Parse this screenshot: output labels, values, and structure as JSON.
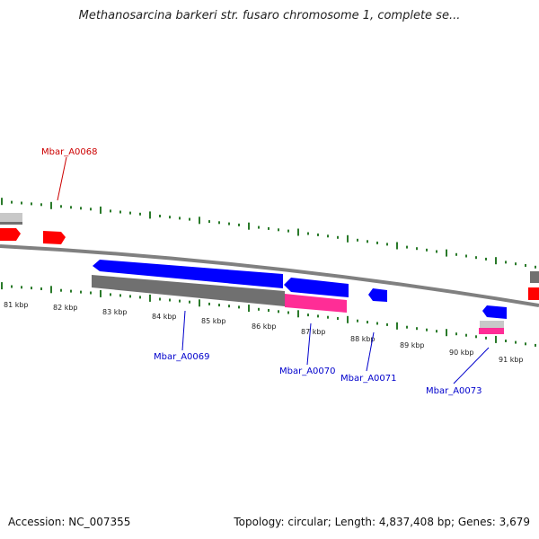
{
  "title": "Methanosarcina barkeri str. fusaro chromosome 1, complete se...",
  "ruler": {
    "unit_labels": [
      "81 kbp",
      "82 kbp",
      "83 kbp",
      "84 kbp",
      "85 kbp",
      "86 kbp",
      "87 kbp",
      "88 kbp",
      "89 kbp",
      "90 kbp",
      "91 kbp"
    ],
    "tick_color": "#2a7a2a",
    "dot_color": "#2a7a2a"
  },
  "backbone_color": "#808080",
  "genes": {
    "mbar_a0068": {
      "label": "Mbar_A0068",
      "color": "#cc0000"
    },
    "mbar_a0069": {
      "label": "Mbar_A0069",
      "color": "#0000cc"
    },
    "mbar_a0070": {
      "label": "Mbar_A0070",
      "color": "#0000cc"
    },
    "mbar_a0071": {
      "label": "Mbar_A0071",
      "color": "#0000cc"
    },
    "mbar_a0073": {
      "label": "Mbar_A0073",
      "color": "#0000cc"
    }
  },
  "feature_colors": {
    "forward_gene": "#ff0000",
    "reverse_gene": "#0000ff",
    "rna_gray": "#707070",
    "light_gray": "#c8c8c8",
    "pink": "#ff2d96"
  },
  "footer": {
    "accession": "Accession: NC_007355",
    "stats": "Topology: circular; Length: 4,837,408 bp; Genes: 3,679"
  }
}
